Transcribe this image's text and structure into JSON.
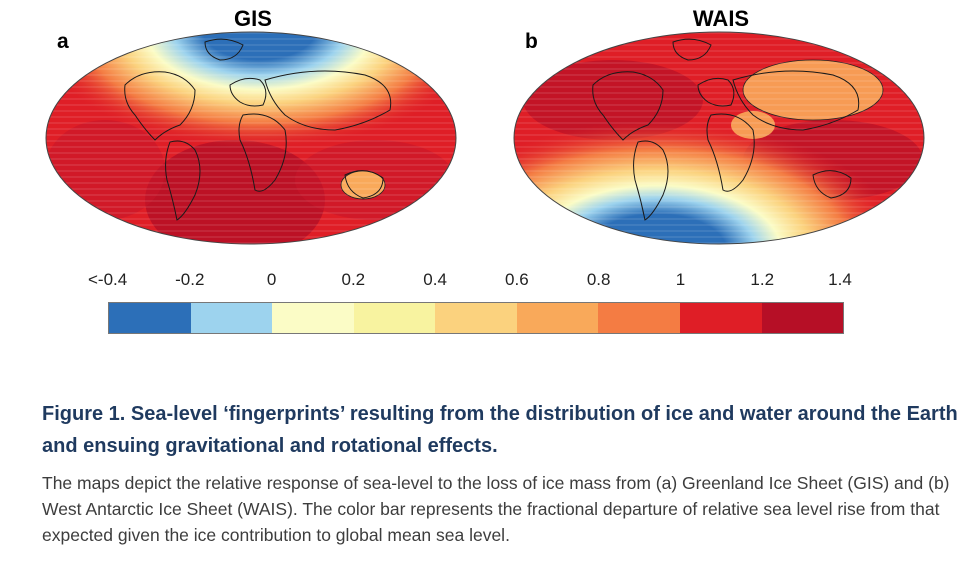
{
  "panels": [
    {
      "title": "GIS",
      "letter": "a"
    },
    {
      "title": "WAIS",
      "letter": "b"
    }
  ],
  "colorbar": {
    "ticks": [
      "<-0.4",
      "-0.2",
      "0",
      "0.2",
      "0.4",
      "0.6",
      "0.8",
      "1",
      "1.2",
      "1.4"
    ],
    "colors": [
      "#2c6fb8",
      "#9dd3ee",
      "#fbfcc6",
      "#f8f3a0",
      "#fbd27e",
      "#f9a95a",
      "#f47c43",
      "#df1e26",
      "#b60f26"
    ]
  },
  "caption": {
    "title": "Figure 1. Sea-level ‘fingerprints’ resulting from the distribution of ice and water around the Earth and ensuing gravitational and rotational effects.",
    "body": "The maps depict the relative response of sea-level to the loss of ice mass from (a) Greenland Ice Sheet (GIS) and (b) West Antarctic Ice Sheet (WAIS). The color bar represents the fractional departure of relative sea level rise from that expected given the ice contribution to global mean sea level."
  }
}
